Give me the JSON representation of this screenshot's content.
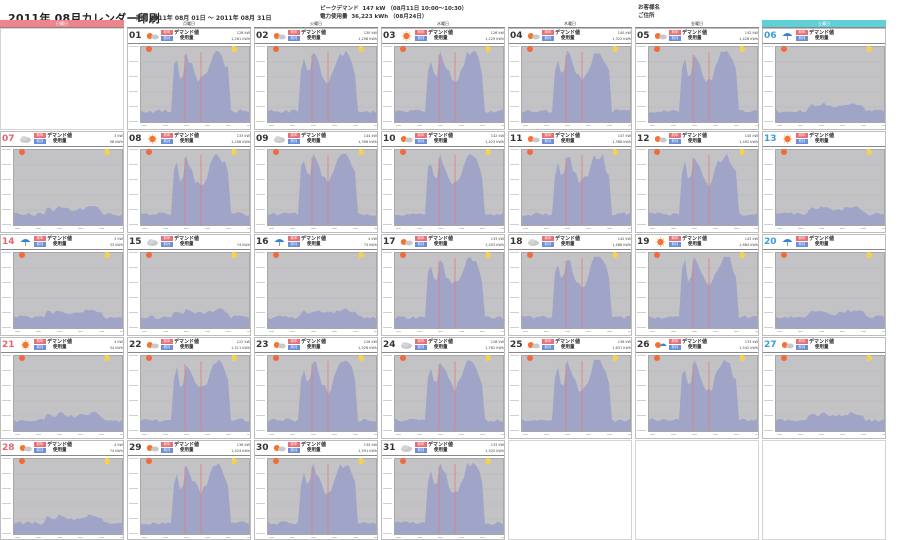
{
  "header": {
    "title": "2011年 08月カレンダー印刷",
    "period_label": "期間",
    "period_from": "2011年 08月 01日",
    "period_sep": "～",
    "period_to": "2011年 08月 31日",
    "peak_demand_label": "ピークデマンド",
    "peak_demand_value": "147 kW （08月11日 10:00～10:30）",
    "usage_label": "電力使用量",
    "usage_value": "36,223 kWh （08月24日）",
    "customer_label": "お客様名",
    "address_label": "ご住所"
  },
  "colors": {
    "sunday": "#f0848c",
    "saturday": "#5fd0d8",
    "plot_background": "#c3c3c6",
    "series_fill": "#9aa0c8",
    "peak_line": "#e47a7a",
    "badge_red": "#ea6f72",
    "badge_blue": "#6d8fd8"
  },
  "weekdays": [
    "日曜日",
    "月曜日",
    "火曜日",
    "水曜日",
    "木曜日",
    "金曜日",
    "土曜日"
  ],
  "labels": {
    "demand": "デマンド値",
    "usage": "使用量",
    "badge_a": "前年",
    "badge_b": "前月"
  },
  "days": [
    {
      "day": "01",
      "weather": "sunny-cloudy",
      "demand": "128 kW",
      "usage": "1,261 kWh"
    },
    {
      "day": "02",
      "weather": "sunny-cloudy",
      "demand": "130 kW",
      "usage": "1,298 kWh"
    },
    {
      "day": "03",
      "weather": "sunny",
      "demand": "126 kW",
      "usage": "1,229 kWh"
    },
    {
      "day": "04",
      "weather": "sunny-cloudy",
      "demand": "140 kW",
      "usage": "1,322 kWh"
    },
    {
      "day": "05",
      "weather": "sunny-cloudy",
      "demand": "142 kW",
      "usage": "1,428 kWh"
    },
    {
      "day": "06",
      "weather": "rain",
      "demand": "",
      "usage": ""
    },
    {
      "day": "07",
      "weather": "cloudy",
      "demand": "3 kW",
      "usage": "58 kWh"
    },
    {
      "day": "08",
      "weather": "sunny",
      "demand": "133 kW",
      "usage": "1,208 kWh"
    },
    {
      "day": "09",
      "weather": "cloudy",
      "demand": "144 kW",
      "usage": "1,396 kWh"
    },
    {
      "day": "10",
      "weather": "sunny-cloudy",
      "demand": "142 kW",
      "usage": "1,423 kWh"
    },
    {
      "day": "11",
      "weather": "sunny-cloudy",
      "demand": "147 kW",
      "usage": "1,388 kWh"
    },
    {
      "day": "12",
      "weather": "sunny-cloudy",
      "demand": "145 kW",
      "usage": "1,492 kWh"
    },
    {
      "day": "13",
      "weather": "sunny",
      "demand": "",
      "usage": ""
    },
    {
      "day": "14",
      "weather": "rain",
      "demand": "3 kW",
      "usage": "33 kWh"
    },
    {
      "day": "15",
      "weather": "cloudy",
      "demand": "",
      "usage": "74 kWh"
    },
    {
      "day": "16",
      "weather": "rain",
      "demand": "4 kW",
      "usage": "74 kWh"
    },
    {
      "day": "17",
      "weather": "sunny-cloudy",
      "demand": "133 kW",
      "usage": "1,403 kWh"
    },
    {
      "day": "18",
      "weather": "cloudy",
      "demand": "142 kW",
      "usage": "1,488 kWh"
    },
    {
      "day": "19",
      "weather": "sunny",
      "demand": "143 kW",
      "usage": "1,684 kWh"
    },
    {
      "day": "20",
      "weather": "rain",
      "demand": "",
      "usage": ""
    },
    {
      "day": "21",
      "weather": "sunny",
      "demand": "4 kW",
      "usage": "34 kWh"
    },
    {
      "day": "22",
      "weather": "sunny-cloudy",
      "demand": "122 kW",
      "usage": "1,511 kWh"
    },
    {
      "day": "23",
      "weather": "sunny-cloudy",
      "demand": "126 kW",
      "usage": "1,526 kWh"
    },
    {
      "day": "24",
      "weather": "cloudy",
      "demand": "128 kW",
      "usage": "1,762 kWh"
    },
    {
      "day": "25",
      "weather": "sunny-cloudy",
      "demand": "136 kW",
      "usage": "1,631 kWh"
    },
    {
      "day": "26",
      "weather": "sunny-rain",
      "demand": "133 kW",
      "usage": "1,542 kWh"
    },
    {
      "day": "27",
      "weather": "sunny-cloudy",
      "demand": "",
      "usage": ""
    },
    {
      "day": "28",
      "weather": "sunny-cloudy",
      "demand": "4 kW",
      "usage": "74 kWh"
    },
    {
      "day": "29",
      "weather": "sunny-cloudy",
      "demand": "138 kW",
      "usage": "1,524 kWh"
    },
    {
      "day": "30",
      "weather": "sunny-cloudy",
      "demand": "135 kW",
      "usage": "1,591 kWh"
    },
    {
      "day": "31",
      "weather": "cloudy",
      "demand": "133 kW",
      "usage": "1,520 kWh"
    }
  ]
}
